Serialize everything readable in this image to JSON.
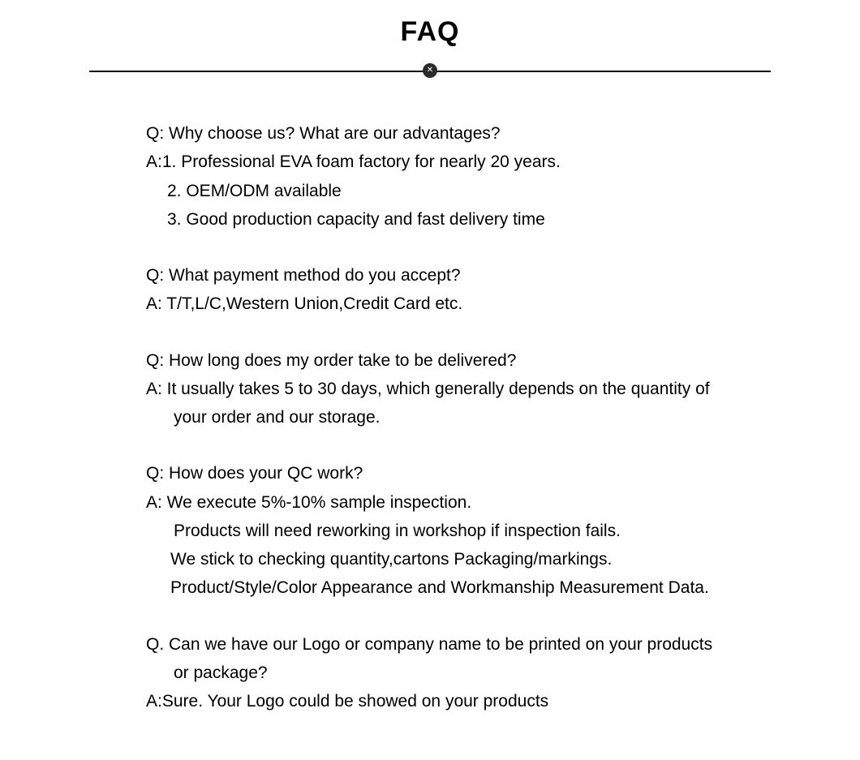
{
  "title": "FAQ",
  "colors": {
    "background": "#ffffff",
    "text": "#000000",
    "divider": "#000000",
    "ornament_bg": "#2a2a2a",
    "ornament_x": "#ffffff"
  },
  "typography": {
    "title_fontsize": 34,
    "title_weight": 900,
    "body_fontsize": 21,
    "body_lineheight": 1.68,
    "font_family": "Arial"
  },
  "faq": [
    {
      "q": "Q: Why choose us? What are our advantages?",
      "a_lines": [
        {
          "text": "A:1. Professional EVA foam factory for nearly 20 years.",
          "indent": 0
        },
        {
          "text": "2.  OEM/ODM available",
          "indent": 1
        },
        {
          "text": "3.  Good production capacity and fast delivery time",
          "indent": 1
        }
      ]
    },
    {
      "q": "Q: What payment method do you accept?",
      "a_lines": [
        {
          "text": "A: T/T,L/C,Western Union,Credit Card etc.",
          "indent": 0
        }
      ]
    },
    {
      "q": "Q: How long does my order take to be delivered?",
      "a_lines": [
        {
          "text": "A: It usually takes 5 to 30 days, which generally depends on the quantity of",
          "indent": 0
        },
        {
          "text": "your order and our storage.",
          "indent": 2
        }
      ]
    },
    {
      "q": "Q: How does your QC work?",
      "a_lines": [
        {
          "text": "A: We execute 5%-10% sample inspection.",
          "indent": 0
        },
        {
          "text": "Products will need reworking in workshop if inspection fails.",
          "indent": 2
        },
        {
          "text": "We stick to checking quantity,cartons Packaging/markings.",
          "indent": 3
        },
        {
          "text": "Product/Style/Color Appearance and Workmanship Measurement Data.",
          "indent": 3
        }
      ]
    },
    {
      "q": "Q. Can we have our Logo or company name to be printed on your products",
      "q_cont": [
        {
          "text": "or package?",
          "indent": 2
        }
      ],
      "a_lines": [
        {
          "text": "A:Sure. Your Logo could be showed on your products",
          "indent": 0
        }
      ]
    }
  ]
}
